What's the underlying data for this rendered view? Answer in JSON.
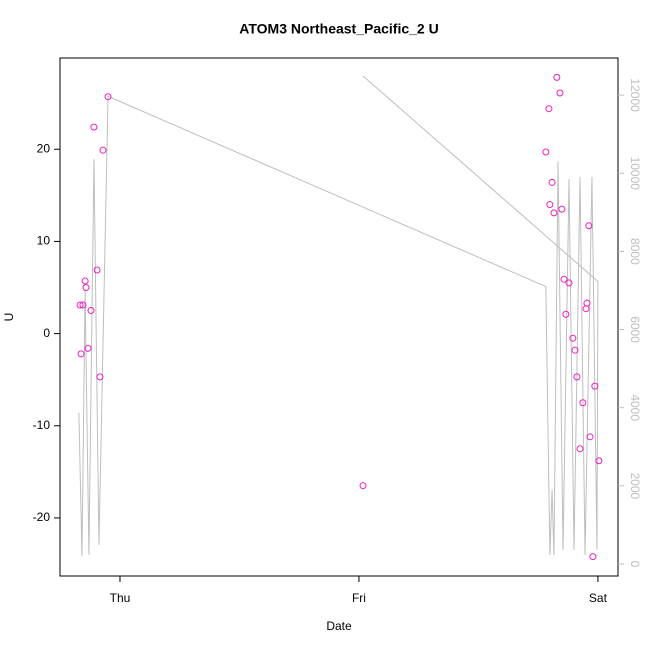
{
  "chart_data": {
    "type": "scatter",
    "title": "ATOM3 Northeast_Pacific_2 U",
    "xlabel": "Date",
    "ylabel": "U",
    "x": [
      -0.167,
      -0.155,
      -0.163,
      -0.146,
      -0.142,
      -0.134,
      -0.121,
      -0.109,
      -0.096,
      -0.084,
      -0.071,
      -0.05,
      1.017,
      1.782,
      1.795,
      1.799,
      1.808,
      1.816,
      1.828,
      1.841,
      1.849,
      1.858,
      1.866,
      1.879,
      1.895,
      1.904,
      1.912,
      1.925,
      1.937,
      1.95,
      1.954,
      1.962,
      1.967,
      1.979,
      1.987,
      2.004
    ],
    "series": [
      {
        "color": "#f01fc0",
        "values": [
          3.1,
          3.1,
          -2.2,
          5.7,
          5.0,
          -1.6,
          2.5,
          22.4,
          6.9,
          -4.7,
          19.9,
          25.7,
          -16.5,
          19.7,
          24.4,
          14.0,
          16.4,
          13.1,
          27.8,
          26.1,
          13.5,
          5.9,
          2.1,
          5.5,
          -0.5,
          -1.8,
          -4.7,
          -12.5,
          -7.5,
          2.7,
          3.3,
          11.7,
          -11.2,
          -24.2,
          -5.7,
          -13.8
        ]
      },
      {
        "type": "line",
        "axis": "y2",
        "color": "#bebebe",
        "x": [
          -0.172,
          -0.159,
          -0.146,
          -0.13,
          -0.109,
          -0.088,
          -0.05,
          1.782,
          1.799,
          1.808,
          1.816,
          1.833,
          1.854,
          1.879,
          1.9,
          1.925,
          1.946,
          1.975,
          1.996,
          2.0,
          1.017
        ],
        "values": [
          3870,
          205,
          7030,
          230,
          10360,
          490,
          11970,
          7100,
          230,
          1900,
          230,
          10300,
          360,
          9850,
          360,
          9900,
          230,
          9900,
          360,
          7230,
          12490
        ]
      }
    ],
    "xlim": [
      -0.251,
      2.084
    ],
    "xticks": [
      {
        "value": 0,
        "label": "Thu"
      },
      {
        "value": 1,
        "label": "Fri"
      },
      {
        "value": 2,
        "label": "Sat"
      }
    ],
    "ylim": [
      -26.3,
      29.9
    ],
    "yticks": [
      -20,
      -10,
      0,
      10,
      20
    ],
    "y2lim": [
      -308,
      12950
    ],
    "y2ticks": [
      0,
      2000,
      4000,
      6000,
      8000,
      10000,
      12000
    ]
  }
}
